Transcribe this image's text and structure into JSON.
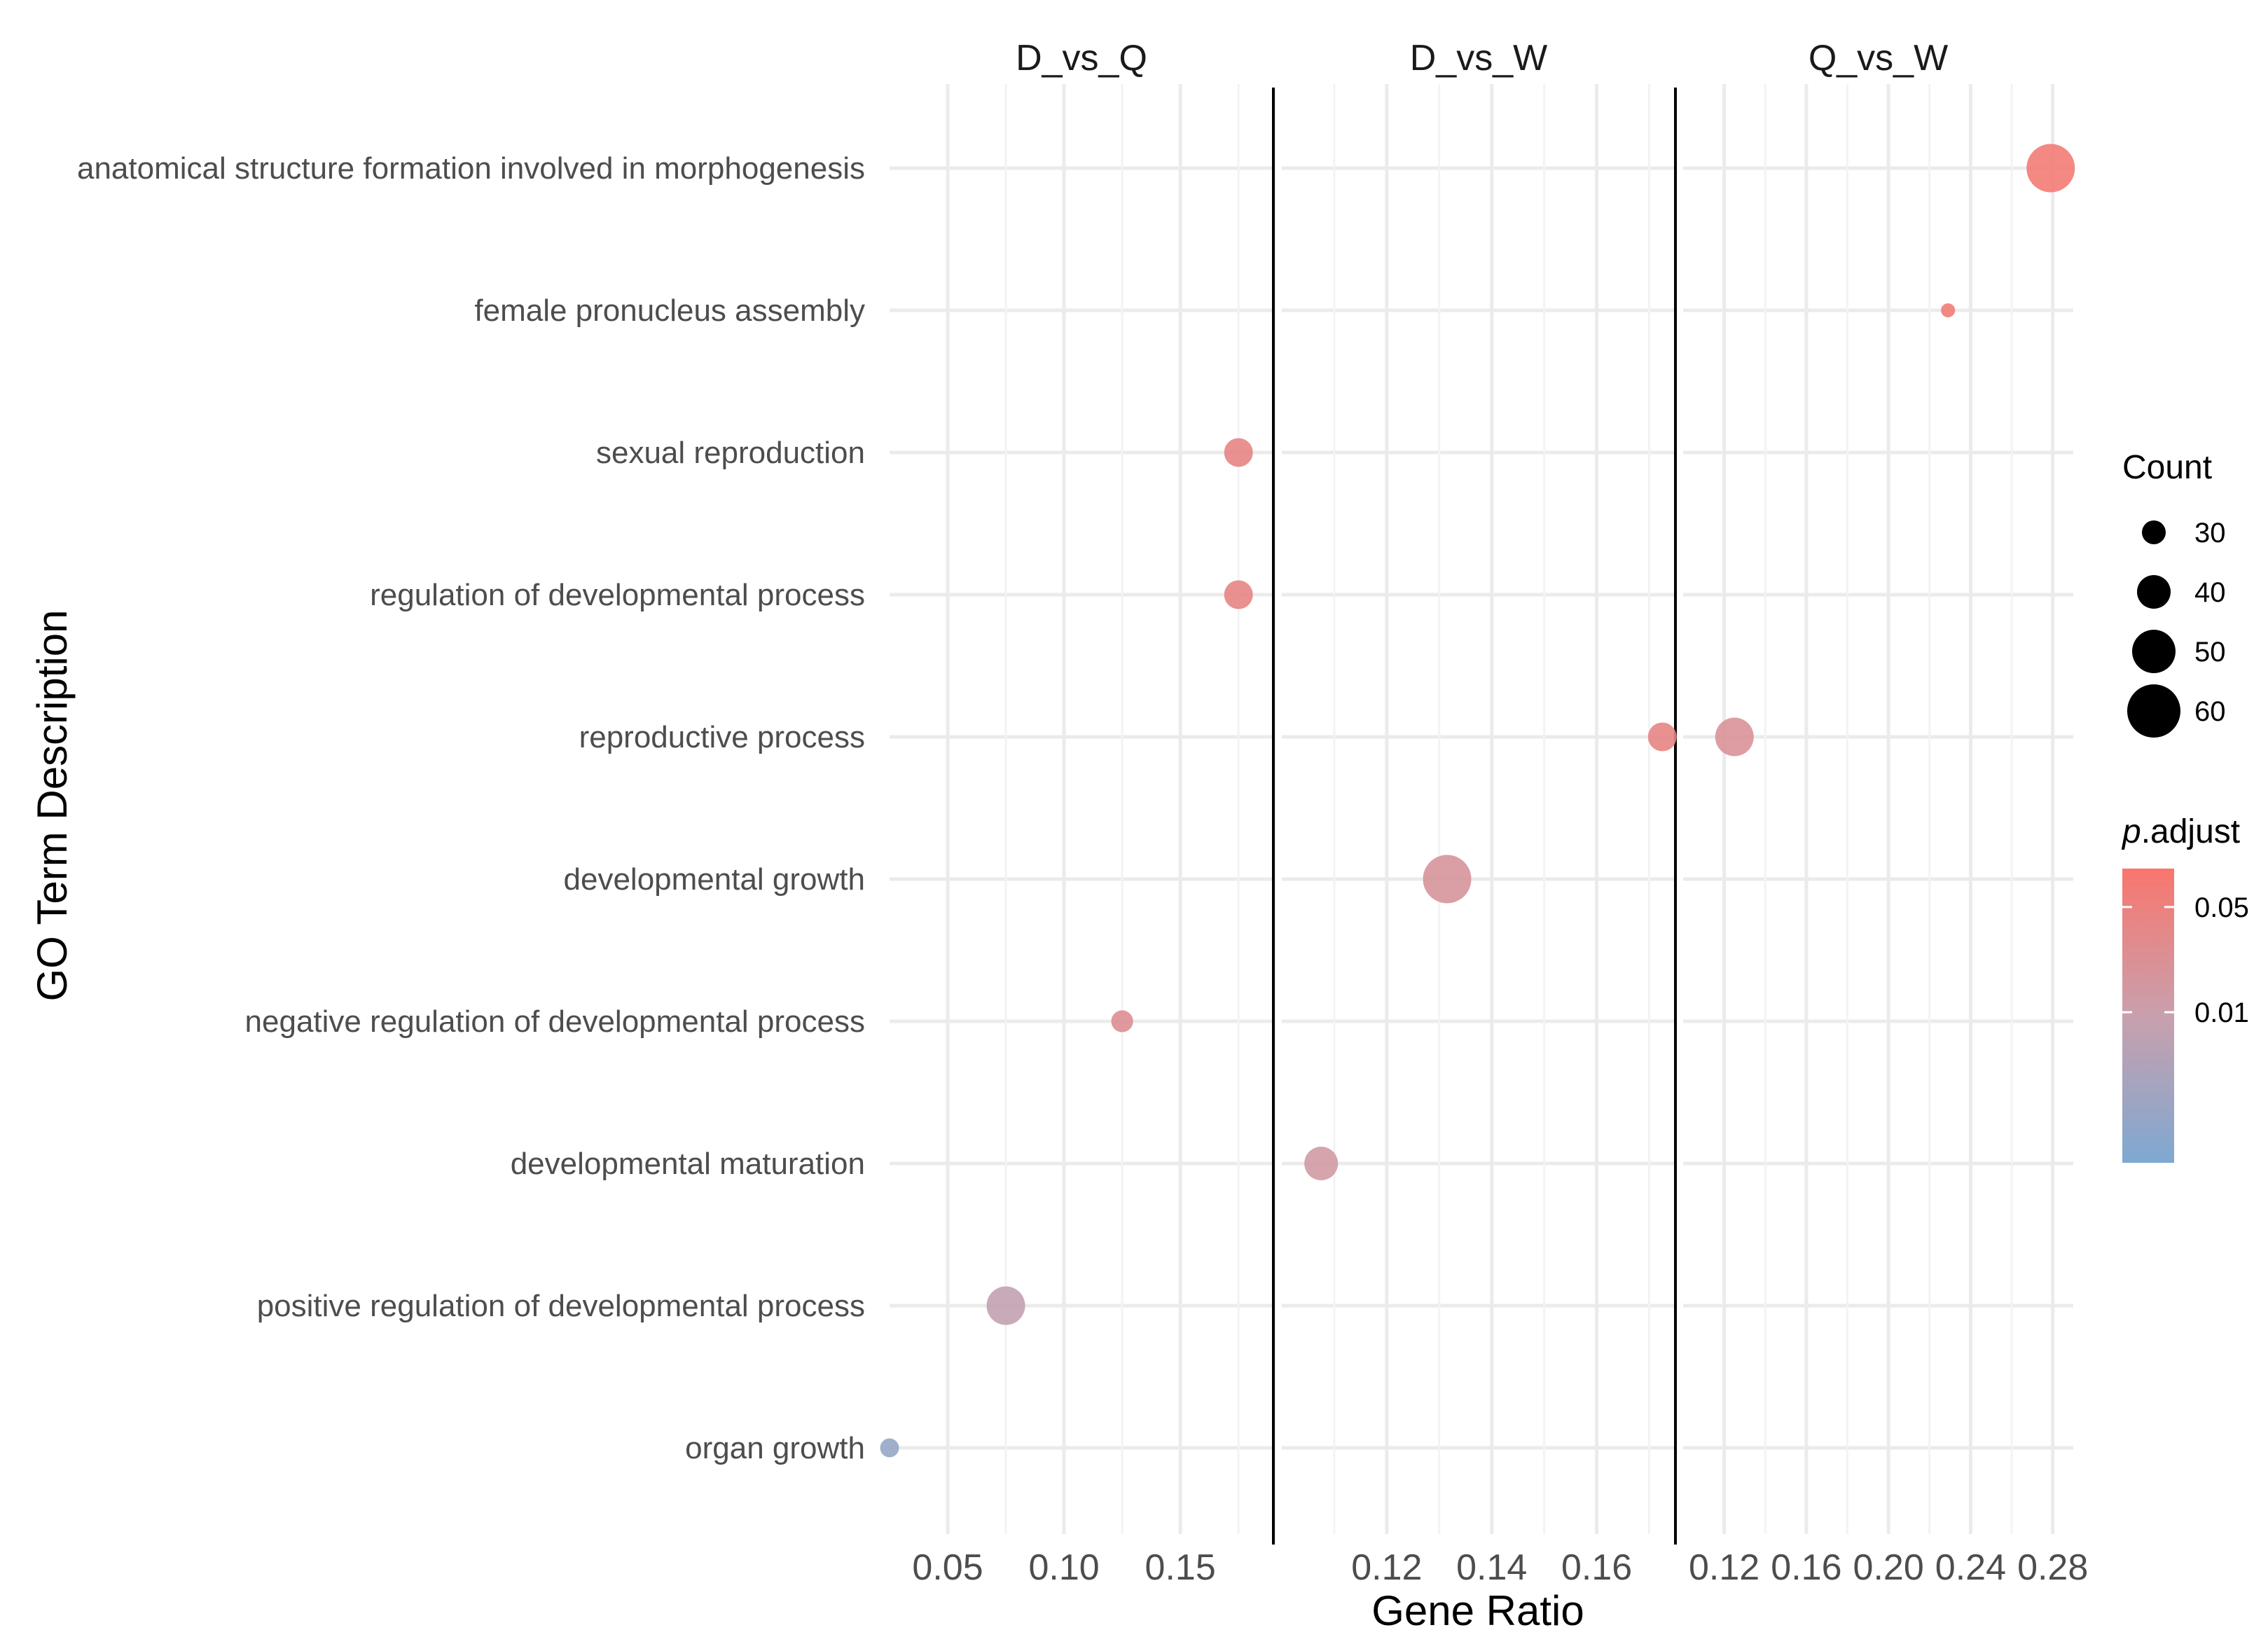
{
  "chart_data": {
    "type": "scatter",
    "xlabel": "Gene Ratio",
    "ylabel": "GO Term Description",
    "terms": [
      "anatomical structure formation involved in morphogenesis",
      "female pronucleus assembly",
      "sexual reproduction",
      "regulation of developmental process",
      "reproductive process",
      "developmental growth",
      "negative regulation of developmental process",
      "developmental maturation",
      "positive regulation of developmental process",
      "organ growth"
    ],
    "facets": [
      {
        "name": "D_vs_Q",
        "xlim": [
          0.025,
          0.19
        ],
        "ticks": [
          0.05,
          0.1,
          0.15
        ],
        "tick_labels": [
          "0.05",
          "0.10",
          "0.15"
        ],
        "points": [
          {
            "term": "sexual reproduction",
            "x": 0.175,
            "count": 35,
            "p_adjust": 0.04
          },
          {
            "term": "regulation of developmental process",
            "x": 0.175,
            "count": 35,
            "p_adjust": 0.04
          },
          {
            "term": "negative regulation of developmental process",
            "x": 0.125,
            "count": 28,
            "p_adjust": 0.025
          },
          {
            "term": "positive regulation of developmental process",
            "x": 0.075,
            "count": 45,
            "p_adjust": 0.008
          },
          {
            "term": "organ growth",
            "x": 0.025,
            "count": 25,
            "p_adjust": 0.002
          }
        ]
      },
      {
        "name": "D_vs_W",
        "xlim": [
          0.1,
          0.175
        ],
        "ticks": [
          0.12,
          0.14,
          0.16
        ],
        "tick_labels": [
          "0.12",
          "0.14",
          "0.16"
        ],
        "points": [
          {
            "term": "reproductive process",
            "x": 0.1725,
            "count": 35,
            "p_adjust": 0.04
          },
          {
            "term": "developmental growth",
            "x": 0.1315,
            "count": 55,
            "p_adjust": 0.018
          },
          {
            "term": "developmental maturation",
            "x": 0.1075,
            "count": 40,
            "p_adjust": 0.013
          }
        ]
      },
      {
        "name": "Q_vs_W",
        "xlim": [
          0.1,
          0.29
        ],
        "ticks": [
          0.12,
          0.16,
          0.2,
          0.24,
          0.28
        ],
        "tick_labels": [
          "0.12",
          "0.16",
          "0.20",
          "0.24",
          "0.28"
        ],
        "points": [
          {
            "term": "anatomical structure formation involved in morphogenesis",
            "x": 0.279,
            "count": 55,
            "p_adjust": 0.07
          },
          {
            "term": "female pronucleus assembly",
            "x": 0.229,
            "count": 20,
            "p_adjust": 0.065
          },
          {
            "term": "reproductive process",
            "x": 0.125,
            "count": 45,
            "p_adjust": 0.02
          }
        ]
      }
    ],
    "size_legend": {
      "title": "Count",
      "values": [
        30,
        40,
        50,
        60
      ],
      "labels": [
        "30",
        "40",
        "50",
        "60"
      ]
    },
    "color_legend": {
      "title_italic": "p",
      "title_rest": ".adjust",
      "breaks": [
        0.05,
        0.01
      ],
      "labels": [
        "0.05",
        "0.01"
      ],
      "range": [
        0.001,
        0.09
      ],
      "low_color": "#7ea8d2",
      "high_color": "#f8766d"
    }
  }
}
